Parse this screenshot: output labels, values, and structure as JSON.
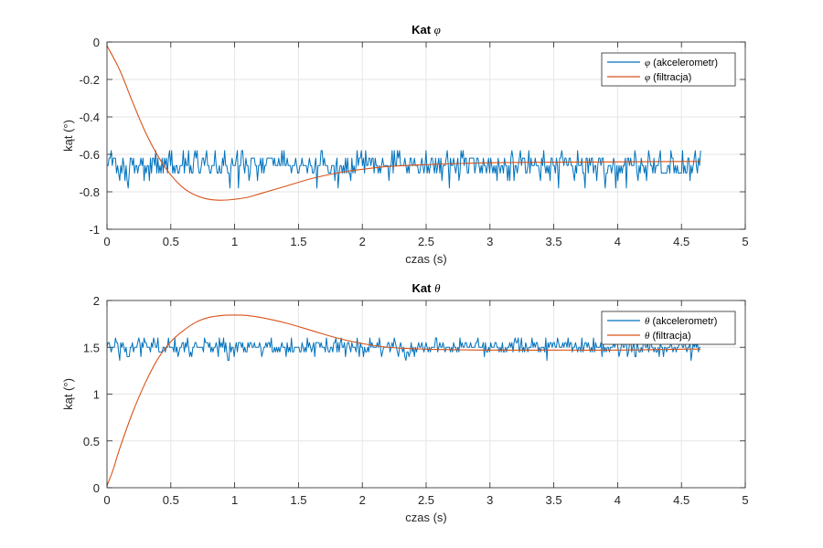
{
  "colors": {
    "series_accelerometer": "#0072BD",
    "series_filtered": "#D95319",
    "grid": "#e6e6e6",
    "axis": "#262626"
  },
  "chart_data": [
    {
      "type": "line",
      "title_prefix": "Kat ",
      "title_symbol": "φ",
      "xlabel": "czas (s)",
      "ylabel": "kąt (°)",
      "xlim": [
        0,
        5
      ],
      "ylim": [
        -1,
        0
      ],
      "xticks": [
        0,
        0.5,
        1,
        1.5,
        2,
        2.5,
        3,
        3.5,
        4,
        4.5,
        5
      ],
      "xtick_labels": [
        "0",
        "0.5",
        "1",
        "1.5",
        "2",
        "2.5",
        "3",
        "3.5",
        "4",
        "4.5",
        "5"
      ],
      "yticks": [
        0,
        -0.2,
        -0.4,
        -0.6,
        -0.8,
        -1
      ],
      "ytick_labels": [
        "0",
        "-0.2",
        "-0.4",
        "-0.6",
        "-0.8",
        "-1"
      ],
      "grid": true,
      "legend_position": "top-right",
      "series": [
        {
          "name_symbol": "φ",
          "name_text": " (akcelerometr)",
          "color": "#0072BD",
          "kind": "noise",
          "x_range": [
            0,
            4.65
          ],
          "mean": -0.66,
          "levels": [
            -0.58,
            -0.62,
            -0.66,
            -0.7,
            -0.74,
            -0.78
          ]
        },
        {
          "name_symbol": "φ",
          "name_text": " (filtracja)",
          "color": "#D95319",
          "kind": "smooth",
          "x": [
            0,
            0.1,
            0.2,
            0.3,
            0.4,
            0.5,
            0.6,
            0.7,
            0.8,
            0.9,
            1.0,
            1.1,
            1.2,
            1.4,
            1.6,
            1.8,
            2.0,
            2.2,
            2.5,
            3.0,
            3.5,
            4.0,
            4.5,
            4.65
          ],
          "y": [
            -0.02,
            -0.15,
            -0.32,
            -0.48,
            -0.61,
            -0.71,
            -0.78,
            -0.82,
            -0.84,
            -0.845,
            -0.84,
            -0.83,
            -0.81,
            -0.77,
            -0.73,
            -0.7,
            -0.68,
            -0.665,
            -0.655,
            -0.645,
            -0.642,
            -0.64,
            -0.638,
            -0.638
          ]
        }
      ]
    },
    {
      "type": "line",
      "title_prefix": "Kat ",
      "title_symbol": "θ",
      "xlabel": "czas (s)",
      "ylabel": "kąt (°)",
      "xlim": [
        0,
        5
      ],
      "ylim": [
        0,
        2
      ],
      "xticks": [
        0,
        0.5,
        1,
        1.5,
        2,
        2.5,
        3,
        3.5,
        4,
        4.5,
        5
      ],
      "xtick_labels": [
        "0",
        "0.5",
        "1",
        "1.5",
        "2",
        "2.5",
        "3",
        "3.5",
        "4",
        "4.5",
        "5"
      ],
      "yticks": [
        0,
        0.5,
        1,
        1.5,
        2
      ],
      "ytick_labels": [
        "0",
        "0.5",
        "1",
        "1.5",
        "2"
      ],
      "grid": true,
      "legend_position": "top-right",
      "series": [
        {
          "name_symbol": "θ",
          "name_text": " (akcelerometr)",
          "color": "#0072BD",
          "kind": "noise",
          "x_range": [
            0,
            4.65
          ],
          "mean": 1.5,
          "levels": [
            1.6,
            1.55,
            1.5,
            1.45,
            1.4,
            1.36
          ]
        },
        {
          "name_symbol": "θ",
          "name_text": " (filtracja)",
          "color": "#D95319",
          "kind": "smooth",
          "x": [
            0,
            0.05,
            0.1,
            0.2,
            0.3,
            0.4,
            0.5,
            0.6,
            0.7,
            0.8,
            0.9,
            1.0,
            1.1,
            1.2,
            1.4,
            1.6,
            1.8,
            2.0,
            2.2,
            2.5,
            3.0,
            3.5,
            4.0,
            4.5,
            4.65
          ],
          "y": [
            0.02,
            0.2,
            0.42,
            0.8,
            1.12,
            1.38,
            1.56,
            1.68,
            1.77,
            1.82,
            1.84,
            1.845,
            1.84,
            1.82,
            1.76,
            1.68,
            1.6,
            1.54,
            1.5,
            1.48,
            1.47,
            1.47,
            1.47,
            1.48,
            1.48
          ]
        }
      ]
    }
  ]
}
